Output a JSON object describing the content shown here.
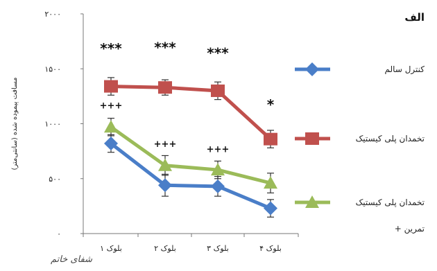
{
  "chart_data": {
    "type": "line",
    "panel_label": "الف",
    "ylabel": "مسافت پیموده شده (سانتی‌متر)",
    "ylim": [
      0,
      2000
    ],
    "ytick_labels": [
      "۰",
      "۵۰۰",
      "۱۰۰۰",
      "۱۵۰۰",
      "۲۰۰۰"
    ],
    "ytick_values": [
      0,
      500,
      1000,
      1500,
      2000
    ],
    "categories": [
      "بلوک ۱",
      "بلوک ۲",
      "بلوک ۳",
      "بلوک ۴"
    ],
    "grid": false,
    "legend_position": "right",
    "series": [
      {
        "name": "کنترل سالم",
        "color": "#4a7ec8",
        "marker": "diamond",
        "values": [
          820,
          440,
          430,
          230
        ],
        "errors": [
          80,
          100,
          90,
          80
        ]
      },
      {
        "name": "تخمدان پلی کیستیک",
        "color": "#c0504d",
        "marker": "square",
        "values": [
          1340,
          1330,
          1300,
          860
        ],
        "errors": [
          80,
          70,
          80,
          80
        ]
      },
      {
        "name": "تخمدان پلی کیستیک + تمرین",
        "legend_lines": [
          "تخمدان پلی کیستیک",
          "+ تمرین"
        ],
        "color": "#9bbb59",
        "marker": "triangle",
        "values": [
          970,
          620,
          580,
          460
        ],
        "errors": [
          80,
          90,
          80,
          90
        ]
      }
    ],
    "annotations": [
      {
        "category": 0,
        "value": 1640,
        "text": "***"
      },
      {
        "category": 1,
        "value": 1650,
        "text": "***"
      },
      {
        "category": 2,
        "value": 1600,
        "text": "***"
      },
      {
        "category": 3,
        "value": 1130,
        "text": "*"
      },
      {
        "category": 0,
        "value": 1140,
        "text": "+++"
      },
      {
        "category": 1,
        "value": 790,
        "text": "+++"
      },
      {
        "category": 2,
        "value": 740,
        "text": "+++"
      }
    ]
  },
  "watermark": "شفای خاتم"
}
